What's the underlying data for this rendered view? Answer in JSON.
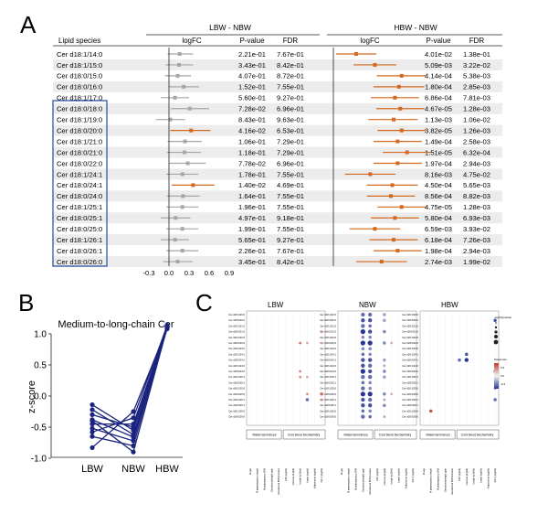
{
  "panel_labels": {
    "a": "A",
    "b": "B",
    "c": "C"
  },
  "panel_a": {
    "col_lipid": "Lipid species",
    "group_left": "LBW - NBW",
    "group_right": "HBW - NBW",
    "col_logfc": "logFC",
    "col_p": "P-value",
    "col_fdr": "FDR",
    "xaxis_ticks": [
      "-0.3",
      "0.0",
      "0.3",
      "0.6",
      "0.9"
    ],
    "xaxis_values": [
      -0.3,
      0.0,
      0.3,
      0.6,
      0.9
    ],
    "colors": {
      "gray": "#a6a6a6",
      "orange": "#d2691e",
      "box": "#1f4e9e",
      "stripe": "#ececec"
    },
    "rows": [
      {
        "name": "Cer d18:1/14:0",
        "l_p": "2.21e-01",
        "l_fdr": "7.67e-01",
        "l_fc": 0.16,
        "l_lo": -0.02,
        "l_hi": 0.36,
        "l_sig": false,
        "h_p": "4.01e-02",
        "h_fdr": "1.38e-01",
        "h_fc": 0.34,
        "h_lo": 0.04,
        "h_hi": 0.64,
        "h_sig": true
      },
      {
        "name": "Cer d18:1/15:0",
        "l_p": "3.43e-01",
        "l_fdr": "8.42e-01",
        "l_fc": 0.15,
        "l_lo": -0.05,
        "l_hi": 0.36,
        "l_sig": false,
        "h_p": "5.09e-03",
        "h_fdr": "3.22e-02",
        "h_fc": 0.62,
        "h_lo": 0.3,
        "h_hi": 0.94,
        "h_sig": true
      },
      {
        "name": "Cer d18:0/15:0",
        "l_p": "4.07e-01",
        "l_fdr": "8.72e-01",
        "l_fc": 0.13,
        "l_lo": -0.06,
        "l_hi": 0.33,
        "l_sig": false,
        "h_p": "4.14e-04",
        "h_fdr": "5.38e-03",
        "h_fc": 1.02,
        "h_lo": 0.65,
        "h_hi": 1.38,
        "h_sig": true
      },
      {
        "name": "Cer d18:0/16:0",
        "l_p": "1.52e-01",
        "l_fdr": "7.55e-01",
        "l_fc": 0.22,
        "l_lo": 0.0,
        "l_hi": 0.45,
        "l_sig": false,
        "h_p": "1.80e-04",
        "h_fdr": "2.85e-03",
        "h_fc": 0.98,
        "h_lo": 0.6,
        "h_hi": 1.36,
        "h_sig": true
      },
      {
        "name": "Cer d18:1/17:0",
        "l_p": "5.60e-01",
        "l_fdr": "9.27e-01",
        "l_fc": 0.09,
        "l_lo": -0.12,
        "l_hi": 0.3,
        "l_sig": false,
        "h_p": "6.86e-04",
        "h_fdr": "7.81e-03",
        "h_fc": 0.92,
        "h_lo": 0.56,
        "h_hi": 1.28,
        "h_sig": true
      },
      {
        "name": "Cer d18:0/18:0",
        "l_p": "7.28e-02",
        "l_fdr": "6.96e-01",
        "l_fc": 0.31,
        "l_lo": 0.03,
        "l_hi": 0.6,
        "l_sig": false,
        "h_p": "4.67e-05",
        "h_fdr": "1.28e-03",
        "h_fc": 1.0,
        "h_lo": 0.64,
        "h_hi": 1.36,
        "h_sig": true
      },
      {
        "name": "Cer d18:1/19:0",
        "l_p": "8.43e-01",
        "l_fdr": "9.63e-01",
        "l_fc": 0.02,
        "l_lo": -0.2,
        "l_hi": 0.24,
        "l_sig": false,
        "h_p": "1.13e-03",
        "h_fdr": "1.06e-02",
        "h_fc": 0.9,
        "h_lo": 0.52,
        "h_hi": 1.26,
        "h_sig": true
      },
      {
        "name": "Cer d18:0/20:0",
        "l_p": "4.16e-02",
        "l_fdr": "6.53e-01",
        "l_fc": 0.33,
        "l_lo": 0.02,
        "l_hi": 0.62,
        "l_sig": true,
        "h_p": "3.82e-05",
        "h_fdr": "1.26e-03",
        "h_fc": 1.02,
        "h_lo": 0.66,
        "h_hi": 1.38,
        "h_sig": true
      },
      {
        "name": "Cer d18:1/21:0",
        "l_p": "1.06e-01",
        "l_fdr": "7.29e-01",
        "l_fc": 0.24,
        "l_lo": -0.02,
        "l_hi": 0.49,
        "l_sig": false,
        "h_p": "1.49e-04",
        "h_fdr": "2.58e-03",
        "h_fc": 0.96,
        "h_lo": 0.6,
        "h_hi": 1.32,
        "h_sig": true
      },
      {
        "name": "Cer d18:0/21:0",
        "l_p": "1.18e-01",
        "l_fdr": "7.29e-01",
        "l_fc": 0.23,
        "l_lo": -0.03,
        "l_hi": 0.48,
        "l_sig": false,
        "h_p": "1.51e-05",
        "h_fdr": "6.32e-04",
        "h_fc": 1.1,
        "h_lo": 0.74,
        "h_hi": 1.46,
        "h_sig": true
      },
      {
        "name": "Cer d18:0/22:0",
        "l_p": "7.78e-02",
        "l_fdr": "6.96e-01",
        "l_fc": 0.28,
        "l_lo": 0.0,
        "l_hi": 0.55,
        "l_sig": false,
        "h_p": "1.97e-04",
        "h_fdr": "2.94e-03",
        "h_fc": 0.96,
        "h_lo": 0.6,
        "h_hi": 1.32,
        "h_sig": true
      },
      {
        "name": "Cer d18:1/24:1",
        "l_p": "1.78e-01",
        "l_fdr": "7.55e-01",
        "l_fc": 0.2,
        "l_lo": -0.04,
        "l_hi": 0.44,
        "l_sig": false,
        "h_p": "8.16e-03",
        "h_fdr": "4.75e-02",
        "h_fc": 0.55,
        "h_lo": 0.17,
        "h_hi": 0.93,
        "h_sig": true
      },
      {
        "name": "Cer d18:0/24:1",
        "l_p": "1.40e-02",
        "l_fdr": "4.69e-01",
        "l_fc": 0.36,
        "l_lo": 0.04,
        "l_hi": 0.68,
        "l_sig": true,
        "h_p": "4.50e-04",
        "h_fdr": "5.65e-03",
        "h_fc": 0.88,
        "h_lo": 0.5,
        "h_hi": 1.26,
        "h_sig": true
      },
      {
        "name": "Cer d18:0/24:0",
        "l_p": "1.64e-01",
        "l_fdr": "7.55e-01",
        "l_fc": 0.21,
        "l_lo": -0.03,
        "l_hi": 0.46,
        "l_sig": false,
        "h_p": "8.56e-04",
        "h_fdr": "8.82e-03",
        "h_fc": 0.86,
        "h_lo": 0.5,
        "h_hi": 1.22,
        "h_sig": true
      },
      {
        "name": "Cer d18:1/25:1",
        "l_p": "1.96e-01",
        "l_fdr": "7.55e-01",
        "l_fc": 0.2,
        "l_lo": -0.04,
        "l_hi": 0.44,
        "l_sig": false,
        "h_p": "4.75e-05",
        "h_fdr": "1.28e-03",
        "h_fc": 1.02,
        "h_lo": 0.66,
        "h_hi": 1.38,
        "h_sig": true
      },
      {
        "name": "Cer d18:0/25:1",
        "l_p": "4.97e-01",
        "l_fdr": "9.18e-01",
        "l_fc": 0.1,
        "l_lo": -0.12,
        "l_hi": 0.32,
        "l_sig": false,
        "h_p": "5.80e-04",
        "h_fdr": "6.93e-03",
        "h_fc": 0.92,
        "h_lo": 0.56,
        "h_hi": 1.28,
        "h_sig": true
      },
      {
        "name": "Cer d18:0/25:0",
        "l_p": "1.99e-01",
        "l_fdr": "7.55e-01",
        "l_fc": 0.2,
        "l_lo": -0.04,
        "l_hi": 0.44,
        "l_sig": false,
        "h_p": "6.59e-03",
        "h_fdr": "3.93e-02",
        "h_fc": 0.62,
        "h_lo": 0.24,
        "h_hi": 1.0,
        "h_sig": true
      },
      {
        "name": "Cer d18:1/26:1",
        "l_p": "5.65e-01",
        "l_fdr": "9.27e-01",
        "l_fc": 0.09,
        "l_lo": -0.12,
        "l_hi": 0.3,
        "l_sig": false,
        "h_p": "6.18e-04",
        "h_fdr": "7.26e-03",
        "h_fc": 0.9,
        "h_lo": 0.54,
        "h_hi": 1.26,
        "h_sig": true
      },
      {
        "name": "Cer d18:0/26:1",
        "l_p": "2.26e-01",
        "l_fdr": "7.67e-01",
        "l_fc": 0.2,
        "l_lo": -0.04,
        "l_hi": 0.44,
        "l_sig": false,
        "h_p": "1.98e-04",
        "h_fdr": "2.94e-03",
        "h_fc": 0.96,
        "h_lo": 0.6,
        "h_hi": 1.32,
        "h_sig": true
      },
      {
        "name": "Cer d18:0/26:0",
        "l_p": "3.45e-01",
        "l_fdr": "8.42e-01",
        "l_fc": 0.13,
        "l_lo": -0.09,
        "l_hi": 0.35,
        "l_sig": false,
        "h_p": "2.74e-03",
        "h_fdr": "1.99e-02",
        "h_fc": 0.72,
        "h_lo": 0.34,
        "h_hi": 1.1,
        "h_sig": true
      }
    ]
  },
  "chart_data": [
    {
      "type": "line",
      "title": "Medium-to-long-chain Cer",
      "ylabel": "z-score",
      "categories": [
        "LBW",
        "NBW",
        "HBW"
      ],
      "ylim": [
        -1.05,
        1.2
      ],
      "yticks": [
        -1.0,
        -0.5,
        0.0,
        0.5,
        1.0
      ],
      "ytick_labels": [
        "-1.0",
        "-0.5",
        "0.0",
        "0.5",
        "1.0"
      ],
      "color": "#1a237e",
      "series": [
        {
          "name": "s1",
          "values": [
            -0.14,
            -0.55,
            1.12
          ]
        },
        {
          "name": "s2",
          "values": [
            -0.22,
            -0.62,
            1.1
          ]
        },
        {
          "name": "s3",
          "values": [
            -0.3,
            -0.5,
            1.14
          ]
        },
        {
          "name": "s4",
          "values": [
            -0.38,
            -0.66,
            1.08
          ]
        },
        {
          "name": "s5",
          "values": [
            -0.45,
            -0.45,
            1.1
          ]
        },
        {
          "name": "s6",
          "values": [
            -0.52,
            -0.72,
            1.12
          ]
        },
        {
          "name": "s7",
          "values": [
            -0.58,
            -0.35,
            1.13
          ]
        },
        {
          "name": "s8",
          "values": [
            -0.65,
            -0.8,
            1.11
          ]
        },
        {
          "name": "s9",
          "values": [
            -0.83,
            -0.25,
            1.09
          ]
        },
        {
          "name": "s10",
          "values": [
            -0.4,
            -0.9,
            1.1
          ]
        }
      ]
    }
  ],
  "panel_c": {
    "groups": [
      "LBW",
      "NBW",
      "HBW"
    ],
    "row_labels": [
      "Cer d18:1/20:0",
      "Cer d18:0/20:0",
      "Cer d18:1/21:0",
      "Cer d18:0/21:0",
      "Cer d18:1/22:0",
      "Cer d18:0/22:0",
      "Cer d18:1/23:0",
      "Cer d18:1/24:1",
      "Cer d18:0/24:1",
      "Cer d18:1/24:0",
      "Cer d18:0/24:0",
      "Cer d18:1/25:1",
      "Cer d18:0/25:1",
      "Cer d18:1/25:0",
      "Cer d18:0/25:0",
      "Cer d18:1/26:1",
      "Cer d18:0/26:1",
      "Cer d18:1/26:0",
      "Cer d18:0/26:0"
    ],
    "col_labels": [
      "M age",
      "M prepregnancy weight",
      "M prepregnancy BMI",
      "Gestationalweight gain",
      "Gestational BMI increase",
      "AFN (ng/ml)",
      "Glucose (mg/dl)",
      "Insulin (uIU/ml)",
      "Leptin (ng/ml)",
      "Adiponectin (ug/ml)",
      "IGF-1 (ng/ml)"
    ],
    "bracket_maternal": "Maternal indices",
    "bracket_cord": "Cord blood biochemistry",
    "legend_size_title": "-log10(pvalue)",
    "legend_color_title": "Spearman",
    "legend_color_ticks": [
      "0.3",
      "0.0",
      "-0.3"
    ],
    "dots": [
      {
        "g": 0,
        "r": 3,
        "c": 10,
        "v": 0.4,
        "s": 2
      },
      {
        "g": 0,
        "r": 5,
        "c": 7,
        "v": 0.5,
        "s": 2
      },
      {
        "g": 0,
        "r": 5,
        "c": 8,
        "v": 0.3,
        "s": 2
      },
      {
        "g": 0,
        "r": 5,
        "c": 10,
        "v": 0.3,
        "s": 2
      },
      {
        "g": 0,
        "r": 10,
        "c": 7,
        "v": 0.4,
        "s": 2
      },
      {
        "g": 0,
        "r": 11,
        "c": 7,
        "v": 0.4,
        "s": 2
      },
      {
        "g": 0,
        "r": 11,
        "c": 8,
        "v": 0.3,
        "s": 2
      },
      {
        "g": 0,
        "r": 14,
        "c": 8,
        "v": 0.4,
        "s": 2
      },
      {
        "g": 0,
        "r": 14,
        "c": 10,
        "v": 0.5,
        "s": 3
      },
      {
        "g": 0,
        "r": 15,
        "c": 8,
        "v": -0.5,
        "s": 3
      },
      {
        "g": 0,
        "r": 15,
        "c": 10,
        "v": 0.4,
        "s": 2
      },
      {
        "g": 1,
        "r": 0,
        "c": 3,
        "v": -0.5,
        "s": 4
      },
      {
        "g": 1,
        "r": 0,
        "c": 4,
        "v": -0.5,
        "s": 4
      },
      {
        "g": 1,
        "r": 0,
        "c": 6,
        "v": -0.3,
        "s": 3
      },
      {
        "g": 1,
        "r": 1,
        "c": 3,
        "v": -0.6,
        "s": 4
      },
      {
        "g": 1,
        "r": 1,
        "c": 4,
        "v": -0.6,
        "s": 4
      },
      {
        "g": 1,
        "r": 1,
        "c": 6,
        "v": -0.3,
        "s": 3
      },
      {
        "g": 1,
        "r": 2,
        "c": 3,
        "v": -0.5,
        "s": 4
      },
      {
        "g": 1,
        "r": 2,
        "c": 4,
        "v": -0.5,
        "s": 3
      },
      {
        "g": 1,
        "r": 3,
        "c": 3,
        "v": -0.7,
        "s": 5
      },
      {
        "g": 1,
        "r": 3,
        "c": 4,
        "v": -0.6,
        "s": 4
      },
      {
        "g": 1,
        "r": 3,
        "c": 6,
        "v": -0.4,
        "s": 3
      },
      {
        "g": 1,
        "r": 4,
        "c": 3,
        "v": -0.4,
        "s": 3
      },
      {
        "g": 1,
        "r": 4,
        "c": 4,
        "v": -0.4,
        "s": 3
      },
      {
        "g": 1,
        "r": 5,
        "c": 3,
        "v": -0.7,
        "s": 5
      },
      {
        "g": 1,
        "r": 5,
        "c": 4,
        "v": -0.7,
        "s": 5
      },
      {
        "g": 1,
        "r": 5,
        "c": 6,
        "v": -0.4,
        "s": 3
      },
      {
        "g": 1,
        "r": 5,
        "c": 7,
        "v": 0.3,
        "s": 2
      },
      {
        "g": 1,
        "r": 6,
        "c": 3,
        "v": -0.4,
        "s": 3
      },
      {
        "g": 1,
        "r": 6,
        "c": 4,
        "v": -0.4,
        "s": 3
      },
      {
        "g": 1,
        "r": 7,
        "c": 3,
        "v": -0.5,
        "s": 3
      },
      {
        "g": 1,
        "r": 7,
        "c": 4,
        "v": -0.4,
        "s": 3
      },
      {
        "g": 1,
        "r": 8,
        "c": 3,
        "v": -0.6,
        "s": 4
      },
      {
        "g": 1,
        "r": 8,
        "c": 4,
        "v": -0.6,
        "s": 4
      },
      {
        "g": 1,
        "r": 8,
        "c": 6,
        "v": -0.3,
        "s": 3
      },
      {
        "g": 1,
        "r": 9,
        "c": 3,
        "v": -0.6,
        "s": 4
      },
      {
        "g": 1,
        "r": 9,
        "c": 4,
        "v": -0.5,
        "s": 4
      },
      {
        "g": 1,
        "r": 9,
        "c": 6,
        "v": -0.3,
        "s": 2
      },
      {
        "g": 1,
        "r": 10,
        "c": 3,
        "v": -0.7,
        "s": 5
      },
      {
        "g": 1,
        "r": 10,
        "c": 4,
        "v": -0.6,
        "s": 4
      },
      {
        "g": 1,
        "r": 10,
        "c": 6,
        "v": -0.4,
        "s": 3
      },
      {
        "g": 1,
        "r": 11,
        "c": 3,
        "v": -0.5,
        "s": 4
      },
      {
        "g": 1,
        "r": 11,
        "c": 4,
        "v": -0.5,
        "s": 4
      },
      {
        "g": 1,
        "r": 11,
        "c": 6,
        "v": -0.3,
        "s": 3
      },
      {
        "g": 1,
        "r": 12,
        "c": 3,
        "v": -0.5,
        "s": 3
      },
      {
        "g": 1,
        "r": 12,
        "c": 4,
        "v": -0.4,
        "s": 3
      },
      {
        "g": 1,
        "r": 13,
        "c": 3,
        "v": -0.5,
        "s": 4
      },
      {
        "g": 1,
        "r": 13,
        "c": 4,
        "v": -0.4,
        "s": 3
      },
      {
        "g": 1,
        "r": 14,
        "c": 3,
        "v": -0.7,
        "s": 5
      },
      {
        "g": 1,
        "r": 14,
        "c": 4,
        "v": -0.7,
        "s": 5
      },
      {
        "g": 1,
        "r": 14,
        "c": 6,
        "v": -0.4,
        "s": 3
      },
      {
        "g": 1,
        "r": 14,
        "c": 7,
        "v": 0.3,
        "s": 2
      },
      {
        "g": 1,
        "r": 15,
        "c": 3,
        "v": -0.6,
        "s": 4
      },
      {
        "g": 1,
        "r": 15,
        "c": 4,
        "v": -0.5,
        "s": 4
      },
      {
        "g": 1,
        "r": 15,
        "c": 6,
        "v": -0.3,
        "s": 2
      },
      {
        "g": 1,
        "r": 16,
        "c": 3,
        "v": -0.6,
        "s": 4
      },
      {
        "g": 1,
        "r": 16,
        "c": 4,
        "v": -0.6,
        "s": 4
      },
      {
        "g": 1,
        "r": 16,
        "c": 6,
        "v": -0.4,
        "s": 3
      },
      {
        "g": 1,
        "r": 17,
        "c": 3,
        "v": -0.5,
        "s": 3
      },
      {
        "g": 1,
        "r": 17,
        "c": 4,
        "v": -0.4,
        "s": 3
      },
      {
        "g": 1,
        "r": 18,
        "c": 3,
        "v": -0.5,
        "s": 4
      },
      {
        "g": 1,
        "r": 18,
        "c": 4,
        "v": -0.5,
        "s": 3
      },
      {
        "g": 1,
        "r": 18,
        "c": 6,
        "v": -0.3,
        "s": 2
      },
      {
        "g": 2,
        "r": 1,
        "c": 10,
        "v": -0.6,
        "s": 3
      },
      {
        "g": 2,
        "r": 7,
        "c": 6,
        "v": -0.6,
        "s": 3
      },
      {
        "g": 2,
        "r": 8,
        "c": 6,
        "v": -0.7,
        "s": 4
      },
      {
        "g": 2,
        "r": 8,
        "c": 5,
        "v": -0.5,
        "s": 3
      },
      {
        "g": 2,
        "r": 10,
        "c": 10,
        "v": -0.5,
        "s": 3
      },
      {
        "g": 2,
        "r": 15,
        "c": 10,
        "v": -0.5,
        "s": 3
      },
      {
        "g": 2,
        "r": 17,
        "c": 1,
        "v": 0.6,
        "s": 3
      },
      {
        "g": 2,
        "r": 5,
        "c": 10,
        "v": -0.4,
        "s": 2
      },
      {
        "g": 2,
        "r": 13,
        "c": 10,
        "v": -0.4,
        "s": 2
      }
    ]
  }
}
